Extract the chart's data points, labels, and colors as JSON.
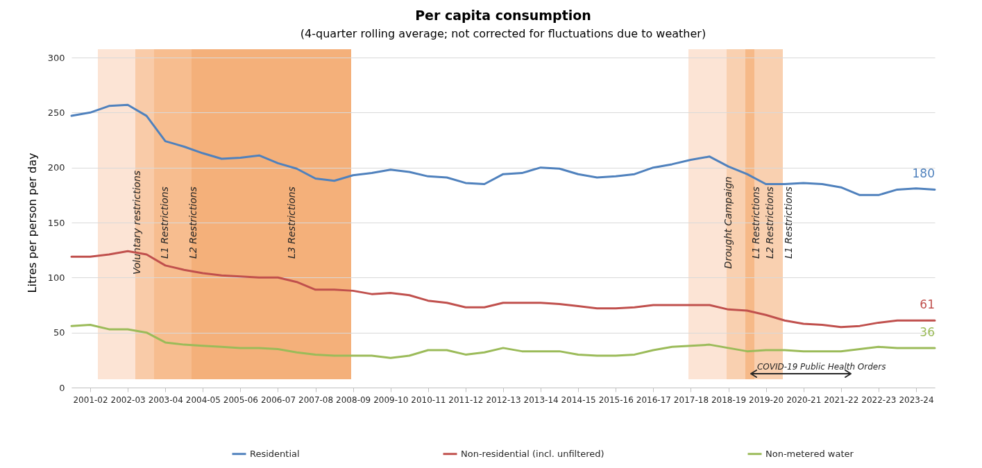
{
  "chart_data": {
    "type": "line",
    "title": "Per capita consumption",
    "subtitle": "(4-quarter rolling average; not corrected for fluctuations due to weather)",
    "ylabel": "Litres per person per day",
    "categories": [
      null,
      "2001-02",
      null,
      "2002-03",
      null,
      "2003-04",
      null,
      "2004-05",
      null,
      "2005-06",
      null,
      "2006-07",
      null,
      "2007-08",
      null,
      "2008-09",
      null,
      "2009-10",
      null,
      "2010-11",
      null,
      "2011-12",
      null,
      "2012-13",
      null,
      "2013-14",
      null,
      "2014-15",
      null,
      "2015-16",
      null,
      "2016-17",
      null,
      "2017-18",
      null,
      "2018-19",
      null,
      "2019-20",
      null,
      "2020-21",
      null,
      "2021-22",
      null,
      "2022-23",
      null,
      "2023-24",
      null
    ],
    "series": [
      {
        "name": "Residential",
        "color": "#4f81bd",
        "values": [
          247,
          250,
          256,
          257,
          247,
          224,
          219,
          213,
          208,
          209,
          211,
          204,
          199,
          190,
          188,
          193,
          195,
          198,
          196,
          192,
          191,
          186,
          185,
          194,
          195,
          200,
          199,
          194,
          191,
          192,
          194,
          200,
          203,
          207,
          210,
          201,
          194,
          185,
          185,
          186,
          185,
          182,
          175,
          175,
          180,
          181,
          180
        ],
        "value_labels": [
          null,
          null,
          null,
          null,
          null,
          null,
          null,
          null,
          null,
          null,
          null,
          null,
          null,
          null,
          null,
          null,
          null,
          null,
          null,
          null,
          null,
          null,
          null,
          null,
          null,
          null,
          null,
          null,
          null,
          null,
          null,
          null,
          null,
          null,
          null,
          null,
          null,
          null,
          null,
          null,
          null,
          null,
          null,
          null,
          null,
          null,
          "180"
        ]
      },
      {
        "name": "Non-residential (incl. unfiltered)",
        "color": "#c0504d",
        "values": [
          119,
          119,
          121,
          124,
          121,
          111,
          107,
          104,
          102,
          101,
          100,
          100,
          96,
          89,
          89,
          88,
          85,
          86,
          84,
          79,
          77,
          73,
          73,
          77,
          77,
          77,
          76,
          74,
          72,
          72,
          73,
          75,
          75,
          75,
          75,
          71,
          70,
          66,
          61,
          58,
          57,
          55,
          56,
          59,
          61,
          61,
          61
        ],
        "value_labels": [
          null,
          null,
          null,
          null,
          null,
          null,
          null,
          null,
          null,
          null,
          null,
          null,
          null,
          null,
          null,
          null,
          null,
          null,
          null,
          null,
          null,
          null,
          null,
          null,
          null,
          null,
          null,
          null,
          null,
          null,
          null,
          null,
          null,
          null,
          null,
          null,
          null,
          null,
          null,
          null,
          null,
          null,
          null,
          null,
          null,
          null,
          "61"
        ]
      },
      {
        "name": "Non-metered water",
        "color": "#9bbb59",
        "values": [
          56,
          57,
          53,
          53,
          50,
          41,
          39,
          38,
          37,
          36,
          36,
          35,
          32,
          30,
          29,
          29,
          29,
          27,
          29,
          34,
          34,
          30,
          32,
          36,
          33,
          33,
          33,
          30,
          29,
          29,
          30,
          34,
          37,
          38,
          39,
          36,
          33,
          34,
          34,
          33,
          33,
          33,
          35,
          37,
          36,
          36,
          36
        ],
        "value_labels": [
          null,
          null,
          null,
          null,
          null,
          null,
          null,
          null,
          null,
          null,
          null,
          null,
          null,
          null,
          null,
          null,
          null,
          null,
          null,
          null,
          null,
          null,
          null,
          null,
          null,
          null,
          null,
          null,
          null,
          null,
          null,
          null,
          null,
          null,
          null,
          null,
          null,
          null,
          null,
          null,
          null,
          null,
          null,
          null,
          null,
          null,
          "36"
        ]
      }
    ],
    "ylim": [
      0,
      300
    ],
    "yticks": [
      0,
      50,
      100,
      150,
      200,
      250,
      300
    ],
    "annotations": [
      "Voluntary restrictions",
      "L1 Restrictions",
      "L2 Restrictions",
      "L3 Restrictions",
      "Drought Campaign",
      "L1 Restrictions",
      "L2 Restrictions",
      "L1 Restrictions",
      "COVID-19 Public Health Orders"
    ],
    "grid": "y",
    "legend": "bottom"
  }
}
